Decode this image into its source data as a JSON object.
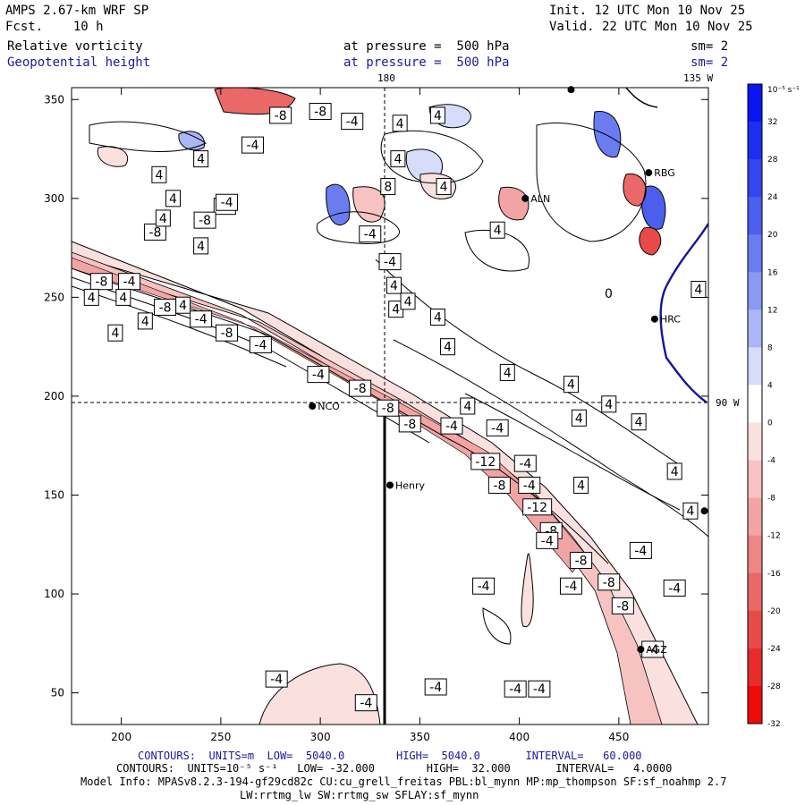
{
  "header": {
    "model": "AMPS 2.67-km WRF SP",
    "fcst": "Fcst.    10 h",
    "init": "Init. 12 UTC Mon 10 Nov 25",
    "valid": "Valid. 22 UTC Mon 10 Nov 25",
    "field1_name": "Relative vorticity",
    "field1_level": "at pressure =  500 hPa",
    "field1_smooth": "sm= 2",
    "field2_name": "Geopotential height",
    "field2_level": "at pressure =  500 hPa",
    "field2_smooth": "sm= 2"
  },
  "axes": {
    "x_ticks": [
      200,
      250,
      300,
      350,
      400,
      450
    ],
    "y_ticks": [
      50,
      100,
      150,
      200,
      250,
      300,
      350
    ],
    "x_range": [
      175,
      495
    ],
    "y_range": [
      34,
      356
    ],
    "lon_top_180": "180",
    "lon_top_135w": "135 W",
    "lat_right_90w": "90 W"
  },
  "stations": [
    {
      "name": "NCO",
      "x": 296,
      "y": 195
    },
    {
      "name": "Henry",
      "x": 335,
      "y": 155
    },
    {
      "name": "AGZ",
      "x": 461,
      "y": 72
    },
    {
      "name": "HRC",
      "x": 468,
      "y": 239
    },
    {
      "name": "RBG",
      "x": 465,
      "y": 313
    },
    {
      "name": "ALN",
      "x": 403,
      "y": 300
    },
    {
      "name": "",
      "x": 426,
      "y": 355
    },
    {
      "name": "",
      "x": 493,
      "y": 142
    }
  ],
  "zero_label": "0",
  "contour_labels": [
    {
      "t": "-8",
      "x": 217,
      "y": 283
    },
    {
      "t": "-4",
      "x": 252,
      "y": 296
    },
    {
      "t": "-8",
      "x": 242,
      "y": 289
    },
    {
      "t": "-4",
      "x": 253,
      "y": 298
    },
    {
      "t": "4",
      "x": 197,
      "y": 232
    },
    {
      "t": "4",
      "x": 212,
      "y": 238
    },
    {
      "t": "4",
      "x": 231,
      "y": 246
    },
    {
      "t": "4",
      "x": 240,
      "y": 276
    },
    {
      "t": "-8",
      "x": 190,
      "y": 258
    },
    {
      "t": "-4",
      "x": 204,
      "y": 258
    },
    {
      "t": "4",
      "x": 185,
      "y": 250
    },
    {
      "t": "4",
      "x": 201,
      "y": 250
    },
    {
      "t": "-8",
      "x": 222,
      "y": 245
    },
    {
      "t": "-4",
      "x": 240,
      "y": 239
    },
    {
      "t": "-8",
      "x": 253,
      "y": 232
    },
    {
      "t": "-4",
      "x": 270,
      "y": 226
    },
    {
      "t": "-4",
      "x": 299,
      "y": 211
    },
    {
      "t": "-8",
      "x": 320,
      "y": 204
    },
    {
      "t": "-8",
      "x": 334,
      "y": 194
    },
    {
      "t": "-8",
      "x": 345,
      "y": 186
    },
    {
      "t": "-4",
      "x": 366,
      "y": 185
    },
    {
      "t": "-4",
      "x": 389,
      "y": 184
    },
    {
      "t": "-12",
      "x": 383,
      "y": 167
    },
    {
      "t": "-4",
      "x": 403,
      "y": 166
    },
    {
      "t": "-8",
      "x": 390,
      "y": 155
    },
    {
      "t": "-4",
      "x": 405,
      "y": 155
    },
    {
      "t": "-12",
      "x": 409,
      "y": 144
    },
    {
      "t": "-8",
      "x": 416,
      "y": 132
    },
    {
      "t": "-4",
      "x": 414,
      "y": 127
    },
    {
      "t": "-8",
      "x": 431,
      "y": 117
    },
    {
      "t": "-4",
      "x": 461,
      "y": 122
    },
    {
      "t": "-4",
      "x": 382,
      "y": 104
    },
    {
      "t": "-4",
      "x": 426,
      "y": 104
    },
    {
      "t": "-8",
      "x": 445,
      "y": 106
    },
    {
      "t": "-8",
      "x": 452,
      "y": 94
    },
    {
      "t": "-4",
      "x": 478,
      "y": 103
    },
    {
      "t": "-4",
      "x": 467,
      "y": 72
    },
    {
      "t": "-4",
      "x": 278,
      "y": 57
    },
    {
      "t": "-4",
      "x": 323,
      "y": 45
    },
    {
      "t": "-4",
      "x": 358,
      "y": 53
    },
    {
      "t": "-4",
      "x": 398,
      "y": 52
    },
    {
      "t": "-4",
      "x": 410,
      "y": 52
    },
    {
      "t": "4",
      "x": 219,
      "y": 312
    },
    {
      "t": "4",
      "x": 221,
      "y": 290
    },
    {
      "t": "-4",
      "x": 266,
      "y": 327
    },
    {
      "t": "4",
      "x": 240,
      "y": 320
    },
    {
      "t": "-8",
      "x": 280,
      "y": 342
    },
    {
      "t": "-8",
      "x": 300,
      "y": 344
    },
    {
      "t": "-4",
      "x": 316,
      "y": 339
    },
    {
      "t": "4",
      "x": 226,
      "y": 300
    },
    {
      "t": "4",
      "x": 339,
      "y": 320
    },
    {
      "t": "4",
      "x": 340,
      "y": 338
    },
    {
      "t": "8",
      "x": 334,
      "y": 306
    },
    {
      "t": "4",
      "x": 359,
      "y": 342
    },
    {
      "t": "4",
      "x": 362,
      "y": 306
    },
    {
      "t": "-4",
      "x": 325,
      "y": 282
    },
    {
      "t": "-4",
      "x": 335,
      "y": 268
    },
    {
      "t": "4",
      "x": 337,
      "y": 256
    },
    {
      "t": "4",
      "x": 338,
      "y": 244
    },
    {
      "t": "4",
      "x": 344,
      "y": 248
    },
    {
      "t": "4",
      "x": 359,
      "y": 240
    },
    {
      "t": "4",
      "x": 364,
      "y": 225
    },
    {
      "t": "4",
      "x": 374,
      "y": 195
    },
    {
      "t": "4",
      "x": 394,
      "y": 212
    },
    {
      "t": "4",
      "x": 426,
      "y": 206
    },
    {
      "t": "4",
      "x": 445,
      "y": 196
    },
    {
      "t": "4",
      "x": 430,
      "y": 189
    },
    {
      "t": "4",
      "x": 431,
      "y": 155
    },
    {
      "t": "4",
      "x": 478,
      "y": 162
    },
    {
      "t": "4",
      "x": 486,
      "y": 142
    },
    {
      "t": "4",
      "x": 389,
      "y": 284
    },
    {
      "t": "4",
      "x": 460,
      "y": 187
    },
    {
      "t": "4",
      "x": 490,
      "y": 254
    }
  ],
  "footer": {
    "line1": "CONTOURS:  UNITS=m  LOW=  5040.0        HIGH=  5040.0       INTERVAL=   60.000",
    "line2": "CONTOURS:  UNITS=10⁻⁵ s⁻¹   LOW= -32.000        HIGH=  32.000       INTERVAL=   4.0000",
    "line3": "Model Info: MPASv8.2.3-194-gf29cd82c CU:cu_grell_freitas PBL:bl_mynn MP:mp_thompson SF:sf_noahmp 2.7",
    "line4": "LW:rrtmg_lw SW:rrtmg_sw SFLAY:sf_mynn"
  },
  "colorbar": {
    "unit": "10⁻⁵ s⁻¹",
    "labels": [
      "32",
      "28",
      "24",
      "20",
      "16",
      "12",
      "8",
      "4",
      "0",
      "-4",
      "-8",
      "-12",
      "-16",
      "-20",
      "-24",
      "-28",
      "-32"
    ],
    "colors": [
      "#0a14f0",
      "#1e2ef0",
      "#3446ee",
      "#4c5eee",
      "#6a7cf0",
      "#8a99f2",
      "#aab6f5",
      "#d6dcfa",
      "#ffffff",
      "#fbe0e0",
      "#f6c2c2",
      "#f2a4a4",
      "#ee8686",
      "#ea6868",
      "#e84a4a",
      "#e82c2c",
      "#f00a0a"
    ]
  }
}
